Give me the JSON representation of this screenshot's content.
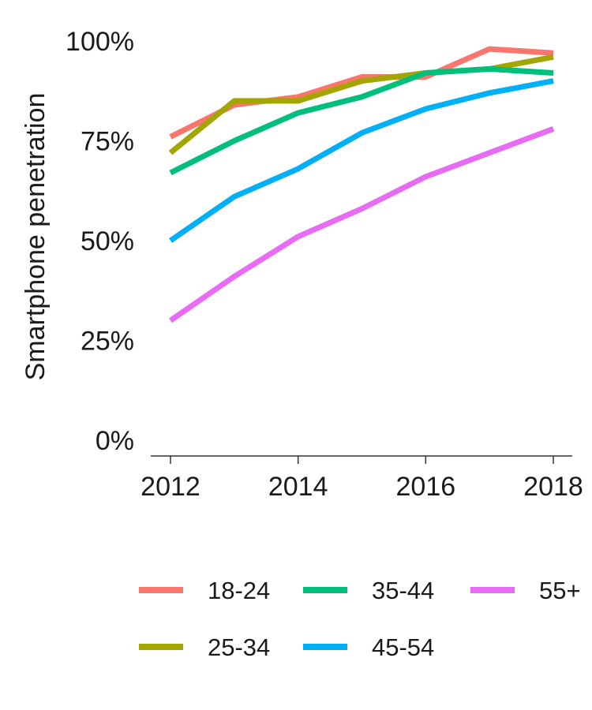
{
  "chart_data": {
    "type": "line",
    "title": "",
    "xlabel": "",
    "ylabel": "Smartphone penetration",
    "x": [
      2012,
      2013,
      2014,
      2015,
      2016,
      2017,
      2018
    ],
    "xticks": [
      2012,
      2014,
      2016,
      2018
    ],
    "xtick_labels": [
      "2012",
      "2014",
      "2016",
      "2018"
    ],
    "yticks": [
      0,
      25,
      50,
      75,
      100
    ],
    "ytick_labels": [
      "0%",
      "25%",
      "50%",
      "75%",
      "100%"
    ],
    "ylim": [
      0,
      100
    ],
    "xlim": [
      2012,
      2018
    ],
    "grid": false,
    "legend_position": "bottom",
    "series": [
      {
        "name": "18-24",
        "color": "#F8766D",
        "values": [
          76,
          84,
          86,
          91,
          91,
          98,
          97
        ]
      },
      {
        "name": "25-34",
        "color": "#A3A500",
        "values": [
          72,
          85,
          85,
          90,
          92,
          93,
          96
        ]
      },
      {
        "name": "35-44",
        "color": "#00BF7D",
        "values": [
          67,
          75,
          82,
          86,
          92,
          93,
          92
        ]
      },
      {
        "name": "45-54",
        "color": "#00B0F6",
        "values": [
          50,
          61,
          68,
          77,
          83,
          87,
          90
        ]
      },
      {
        "name": "55+",
        "color": "#E76BF3",
        "values": [
          30,
          41,
          51,
          58,
          66,
          72,
          78
        ]
      }
    ]
  }
}
